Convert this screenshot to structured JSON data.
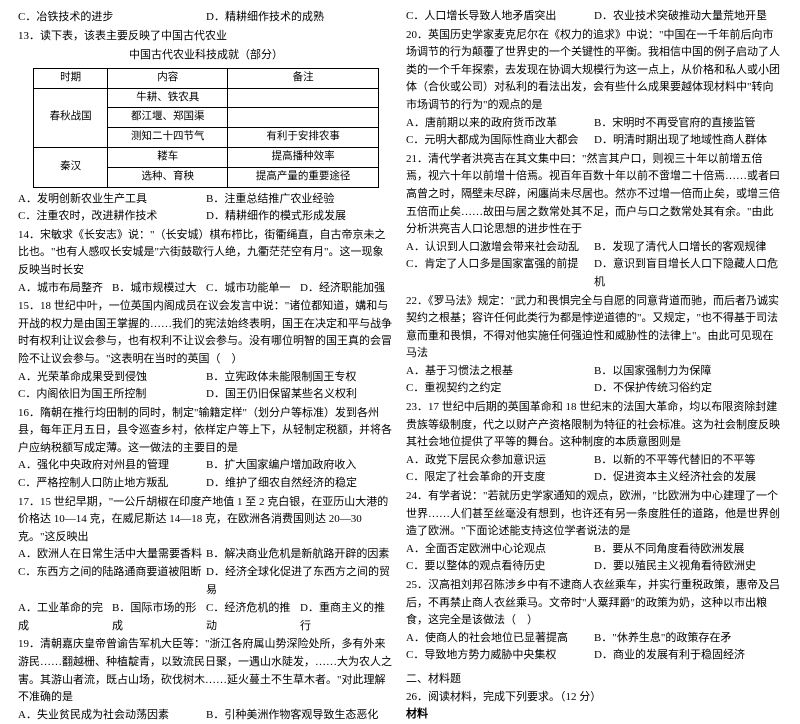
{
  "left": {
    "q12": {
      "optC": "C．冶铁技术的进步",
      "optD": "D．精耕细作技术的成熟"
    },
    "q13": {
      "stem": "13．读下表，该表主要反映了中国古代农业",
      "title": "中国古代农业科技成就（部分）",
      "table": {
        "headers": [
          "时期",
          "内容",
          "备注"
        ],
        "rows": [
          [
            "春秋战国",
            "牛耕、铁农具",
            ""
          ],
          [
            "",
            "都江堰、郑国渠",
            ""
          ],
          [
            "",
            "测知二十四节气",
            "有利于安排农事"
          ],
          [
            "秦汉",
            "耧车",
            "提高播种效率"
          ],
          [
            "",
            "选种、育秧",
            "提高产量的重要途径"
          ]
        ]
      },
      "A": "A．发明创新农业生产工具",
      "B": "B．注重总结推广农业经验",
      "C": "C．注重农时，改进耕作技术",
      "D": "D．精耕细作的模式形成发展"
    },
    "q14": {
      "stem": "14．宋敏求《长安志》说：\"（长安城）棋布栉比，街衢绳直，自古帝京未之比也。\"也有人感叹长安城是\"六街鼓歇行人绝，九衢茫茫空有月\"。这一现象反映当时长安",
      "A": "A．城市布局整齐",
      "B": "B．城市规模过大",
      "C": "C．城市功能单一",
      "D": "D．经济职能加强"
    },
    "q15": {
      "stem": "15．18 世纪中叶，一位英国内阁成员在议会发言中说：\"诸位都知道，媾和与开战的权力是由国王掌握的……我们的宪法始终表明，国王在决定和平与战争时有权利让议会参与，也有权利不让议会参与。没有哪位明智的国王真的会冒险不让议会参与。\"这表明在当时的英国（　）",
      "A": "A．光荣革命成果受到侵蚀",
      "B": "B．立宪政体未能限制国王专权",
      "C": "C．内阁依旧为国王所控制",
      "D": "D．国王仍旧保留某些名义权利"
    },
    "q16": {
      "stem": "16．隋朝在推行均田制的同时，制定\"输籍定样\"（划分户等标准）发到各州县，每年正月五日，县令巡查乡村，依样定户等上下，从轻制定税额，并将各户应纳税额写成定薄。这一做法的主要目的是",
      "A": "A．强化中央政府对州县的管理",
      "B": "B．扩大国家编户增加政府收入",
      "C": "C．严格控制人口防止地方叛乱",
      "D": "D．维护了细农自然经济的稳定"
    },
    "q17": {
      "stem": "17．15 世纪早期，\"一公斤胡椒在印度产地值 1 至 2 克白银，在亚历山大港的价格达 10—14 克，在威尼斯达 14—18 克，在欧洲各消费国则达 20—30 克。\"这反映出",
      "A": "A．欧洲人在日常生活中大量需要香料",
      "B": "B．解决商业危机是新航路开辟的因素",
      "C": "C．东西方之间的陆路通商要道被阻断",
      "D": "D．经济全球化促进了东西方之间的贸易"
    },
    "q18": {
      "A": "A．工业革命的完成",
      "B": "B．国际市场的形成",
      "C": "C．经济危机的推动",
      "D": "D．重商主义的推行"
    },
    "q19": {
      "stem": "19．清朝嘉庆皇帝曾谕告军机大臣等：\"浙江各府属山势深险处所，多有外来游民……翻越栅、种植靛青，以致流民日聚，一遇山水陡发，……大为农人之害。其游山者流，既占山场，砍伐树木……延火蔓土不生草木者。\"对此理解不准确的是",
      "A": "A．失业贫民成为社会动荡因素",
      "B": "B．引种美洲作物客观导致生态恶化"
    }
  },
  "right": {
    "q19c": {
      "C": "C．人口增长导致人地矛盾突出",
      "D": "D．农业技术突破推动大量荒地开垦"
    },
    "q20": {
      "stem": "20．英国历史学家麦克尼尔在《权力的追求》中说：\"中国在一千年前后向市场调节的行为颠覆了世界史的一个关键性的平衡。我相信中国的例子启动了人类的一个千年探索，去发现在协调大规模行为这一点上，从价格和私人或小团体（合伙或公司）对私利的看法出发，会有些什么成果要越体现材料中\"转向市场调节的行为\"的观点的是",
      "A": "A．唐前期以来的政府货币改革",
      "B": "B．宋明时不再受官府的直接监管",
      "C": "C．元明大都成为国际性商业大都会",
      "D": "D．明清时期出现了地域性商人群体"
    },
    "q21": {
      "stem": "21．清代学者洪亮吉在其文集中曰：\"然言其户口，则视三十年以前增五倍焉，视六十年以前增十倍焉。视百年百数十年以前不啻增二十倍焉……或者曰高曾之时，隔壁未尽辟，闲廛尚未尽居也。然亦不过增一倍而止矣，或增三倍五倍而止矣……故田与居之数常处其不足，而户与口之数常处其有余。\"由此分析洪亮吉人口论思想的进步性在于",
      "A": "A．认识到人口激增会带来社会动乱",
      "B": "B．发现了清代人口增长的客观规律",
      "C": "C．肯定了人口多是国家富强的前提",
      "D": "D．意识到盲目增长人口下隐藏人口危机"
    },
    "q22": {
      "stem": "22．《罗马法》规定：\"武力和畏惧完全与自愿的同意背道而驰，而后者乃诚实契约之根基；容许任何此类行为都是悖逆道德的\"。又规定，\"也不得基于司法意而重和畏惧，不得对他实施任何强迫性和威胁性的法律上\"。由此可见现在马法",
      "A": "A．基于习惯法之根基",
      "B": "B．以国家强制力为保障",
      "C": "C．重视契约之约定",
      "D": "D．不保护传统习俗约定"
    },
    "q23": {
      "stem": "23．17 世纪中后期的英国革命和 18 世纪末的法国大革命，均以布限资除封建贵族等级制度，代之以财产产资格限制为特征的社会标准。这为社会制度反映其社会地位提供了平等的舞台。这种制度的本质意图则是",
      "A": "A．政党下层民众参加意识运",
      "B": "B．以新的不平等代替旧的不平等",
      "C": "C．限定了社会革命的开支度",
      "D": "D．促进资本主义经济社会的发展"
    },
    "q24": {
      "stem": "24．有学者说：\"若就历史学家通知的观点，欧洲，\"比欧洲为中心建理了一个世界……人们甚至丝毫没有想到，也许还有另一条度胜任的道路，他是世界创造了欧洲。\"下面论述能支持这位学者说法的是",
      "A": "A．全面否定欧洲中心论观点",
      "B": "B．要从不同角度看待欧洲发展",
      "C": "C．要以整体的观点看待历史",
      "D": "D．要以殖民主义视角看待欧洲史"
    },
    "q25": {
      "stem": "25．汉高祖刘邦召陈涉乡中有不逮商人衣丝乘车，并实行重税政策，惠帝及吕后，不再禁止商人衣丝乘马。文帝时\"人粟拜爵\"的政策为奶，这种以市出粮食，这完全是该做法（　）",
      "A": "A．使商人的社会地位已显著提高",
      "B": "B．\"休养生息\"的政策存在矛",
      "C": "C．导致地方势力威胁中央集权",
      "D": "D．商业的发展有利于稳固经济"
    },
    "section2": {
      "title": "二、材料题",
      "q26": "26．阅读材料，完成下列要求。（12 分）",
      "label": "材料"
    }
  }
}
